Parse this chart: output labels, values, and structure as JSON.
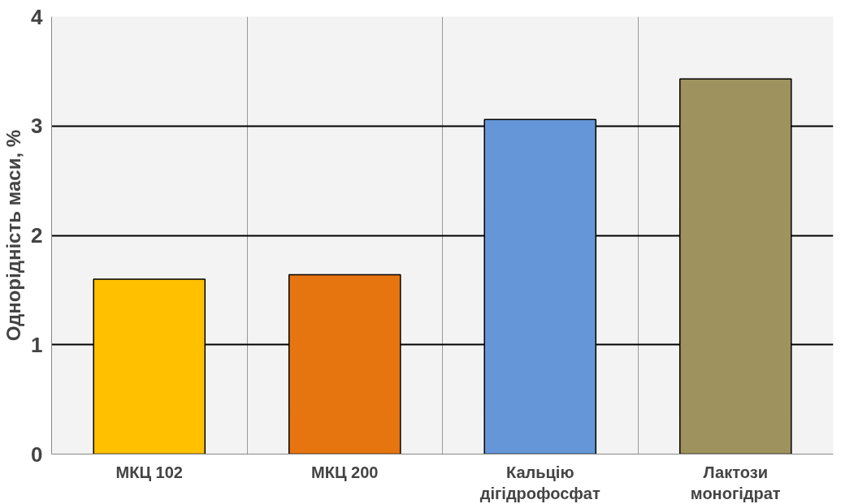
{
  "chart_data": {
    "type": "bar",
    "ylabel": "Однорідність маси, %",
    "categories": [
      "МКЦ 102",
      "МКЦ 200",
      "Кальцію дігідрофосфат",
      "Лактози моногідрат"
    ],
    "values": [
      1.6,
      1.64,
      3.06,
      3.43
    ],
    "colors": [
      "#ffc000",
      "#e67510",
      "#6597d8",
      "#9e925e"
    ],
    "ylim": [
      0,
      4
    ],
    "yticks": [
      0,
      1,
      2,
      3,
      4
    ],
    "grid": true
  }
}
